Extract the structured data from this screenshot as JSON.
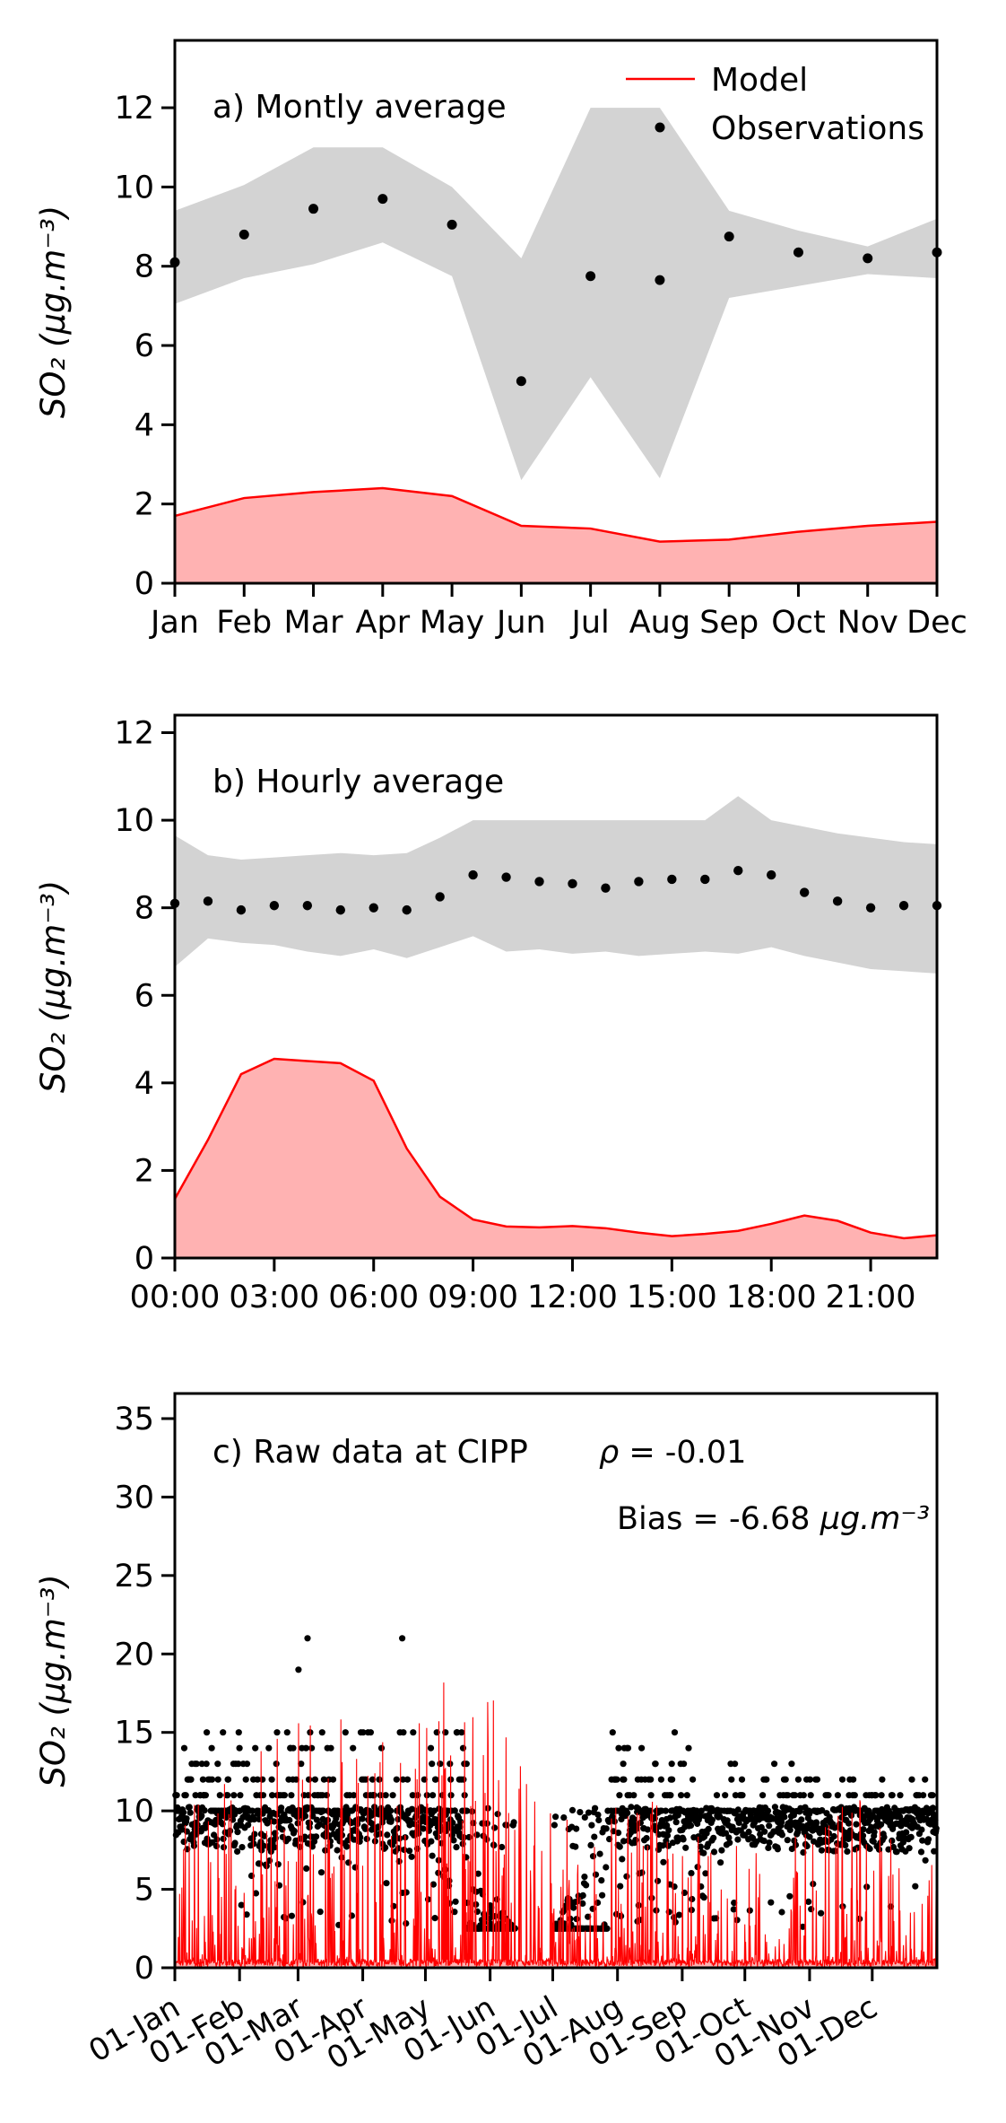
{
  "figure": {
    "background": "#ffffff"
  },
  "colors": {
    "model_line": "#ff0000",
    "model_fill": "rgba(255,0,0,0.30)",
    "band_fill": "#d3d3d3",
    "obs_dot": "#000000",
    "text": "#000000",
    "spine": "#000000"
  },
  "legend": {
    "model_label": "Model",
    "observations_label": "Observations"
  },
  "chart_data": [
    {
      "id": "a",
      "type": "area",
      "title": "a) Montly average",
      "ylabel": "SO₂ (µg.m⁻³)",
      "categories": [
        "Jan",
        "Feb",
        "Mar",
        "Apr",
        "May",
        "Jun",
        "Jul",
        "Aug",
        "Sep",
        "Oct",
        "Nov",
        "Dec"
      ],
      "yticks": [
        0,
        2,
        4,
        6,
        8,
        10,
        12
      ],
      "ylim": [
        0,
        13.7
      ],
      "legend_position": "upper right",
      "series": [
        {
          "name": "Observations",
          "style": "scatter",
          "values": [
            8.1,
            8.8,
            9.45,
            9.7,
            9.05,
            5.1,
            7.75,
            7.65,
            8.75,
            8.35,
            8.2,
            8.35
          ]
        },
        {
          "name": "Observation band high",
          "style": "band-top",
          "values": [
            9.4,
            10.05,
            11.0,
            11.0,
            10.0,
            8.2,
            12.0,
            12.0,
            9.4,
            8.9,
            8.5,
            9.2
          ]
        },
        {
          "name": "Observation band low",
          "style": "band-bottom",
          "values": [
            7.05,
            7.7,
            8.05,
            8.6,
            7.75,
            2.6,
            5.2,
            2.65,
            7.2,
            7.5,
            7.8,
            7.7
          ]
        },
        {
          "name": "Model",
          "style": "filled-line",
          "values": [
            1.7,
            2.15,
            2.3,
            2.4,
            2.2,
            1.45,
            1.38,
            1.05,
            1.1,
            1.3,
            1.45,
            1.55
          ]
        }
      ]
    },
    {
      "id": "b",
      "type": "area",
      "title": "b) Hourly average",
      "ylabel": "SO₂ (µg.m⁻³)",
      "x_hours": [
        0,
        1,
        2,
        3,
        4,
        5,
        6,
        7,
        8,
        9,
        10,
        11,
        12,
        13,
        14,
        15,
        16,
        17,
        18,
        19,
        20,
        21,
        22,
        23
      ],
      "xtick_hours": [
        0,
        3,
        6,
        9,
        12,
        15,
        18,
        21
      ],
      "xticklabels": [
        "00:00",
        "03:00",
        "06:00",
        "09:00",
        "12:00",
        "15:00",
        "18:00",
        "21:00"
      ],
      "yticks": [
        0,
        2,
        4,
        6,
        8,
        10,
        12
      ],
      "ylim": [
        0,
        12.4
      ],
      "series": [
        {
          "name": "Observations",
          "style": "scatter",
          "values": [
            8.1,
            8.15,
            7.95,
            8.05,
            8.05,
            7.95,
            8.0,
            7.95,
            8.25,
            8.75,
            8.7,
            8.6,
            8.55,
            8.45,
            8.6,
            8.65,
            8.65,
            8.85,
            8.75,
            8.35,
            8.15,
            8.0,
            8.05,
            8.05
          ]
        },
        {
          "name": "Observation band high",
          "style": "band-top",
          "values": [
            9.65,
            9.2,
            9.1,
            9.15,
            9.2,
            9.25,
            9.2,
            9.25,
            9.6,
            10.0,
            10.0,
            10.0,
            10.0,
            10.0,
            10.0,
            10.0,
            10.0,
            10.55,
            10.0,
            9.85,
            9.7,
            9.6,
            9.5,
            9.45
          ]
        },
        {
          "name": "Observation band low",
          "style": "band-bottom",
          "values": [
            6.65,
            7.3,
            7.2,
            7.15,
            7.0,
            6.9,
            7.05,
            6.85,
            7.1,
            7.35,
            7.0,
            7.05,
            6.95,
            7.0,
            6.9,
            6.95,
            7.0,
            6.95,
            7.1,
            6.9,
            6.75,
            6.6,
            6.55,
            6.5
          ]
        },
        {
          "name": "Model",
          "style": "filled-line",
          "values": [
            1.35,
            2.7,
            4.2,
            4.55,
            4.5,
            4.45,
            4.05,
            2.5,
            1.4,
            0.88,
            0.72,
            0.7,
            0.73,
            0.68,
            0.58,
            0.5,
            0.55,
            0.62,
            0.78,
            0.97,
            0.85,
            0.58,
            0.45,
            0.52
          ]
        }
      ]
    },
    {
      "id": "c",
      "type": "scatter",
      "title": "c) Raw data at CIPP",
      "ylabel": "SO₂ (µg.m⁻³)",
      "stats": {
        "rho_symbol": "ρ",
        "rho_rest": " = -0.01",
        "bias_prefix": "Bias = -6.68 ",
        "bias_units": "µg.m⁻³"
      },
      "xticklabels": [
        "01-Jan",
        "01-Feb",
        "01-Mar",
        "01-Apr",
        "01-May",
        "01-Jun",
        "01-Jul",
        "01-Aug",
        "01-Sep",
        "01-Oct",
        "01-Nov",
        "01-Dec"
      ],
      "month_start_days": [
        0,
        31,
        59,
        90,
        120,
        151,
        181,
        212,
        243,
        273,
        304,
        334
      ],
      "yticks": [
        0,
        5,
        10,
        15,
        20,
        25,
        30,
        35
      ],
      "ylim": [
        0,
        36.6
      ],
      "raw": {
        "seed": 7,
        "days": 365,
        "sample_step_days": 0.18,
        "thin_prob": 0.1,
        "gap_days": [
          163,
          181
        ],
        "censor_value": 2.5,
        "censor_early": [
          140,
          163
        ],
        "censor_late": [
          181,
          207
        ],
        "dense_range": [
          7.3,
          10.25
        ],
        "stripe_levels": [
          10,
          11,
          12,
          13,
          14,
          15
        ],
        "stripe_weights": [
          0.33,
          0.28,
          0.15,
          0.11,
          0.08,
          0.05
        ],
        "late_stripe_levels": [
          10,
          11,
          12,
          13
        ],
        "late_stripe_weights": [
          0.45,
          0.3,
          0.2,
          0.05
        ],
        "late_day": 250,
        "outlier_max_by_month": [
          13,
          17,
          21,
          21,
          22,
          26,
          14,
          24,
          23,
          13,
          12,
          12
        ],
        "outlier_prob": 0.012,
        "mid_range": [
          2.5,
          7.5
        ],
        "model_spike_max_by_month": [
          10.5,
          14.5,
          16.5,
          16,
          18.5,
          16,
          10,
          10.5,
          7.5,
          8.5,
          12,
          9.5
        ],
        "model_baseline": [
          0.06,
          0.56
        ],
        "model_spike_prob": 0.32,
        "model_samples": 1750
      }
    }
  ]
}
